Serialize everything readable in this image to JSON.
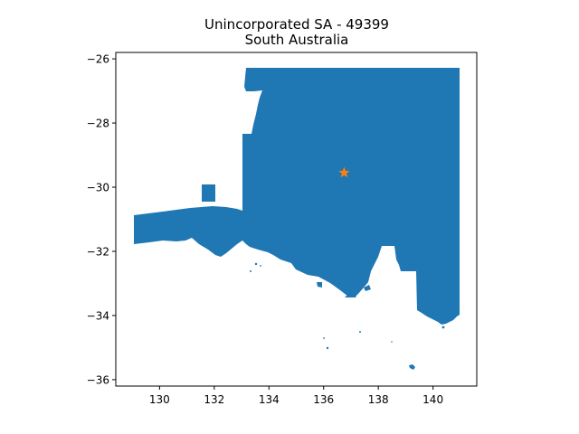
{
  "map": {
    "title": "Unincorporated SA - 49399",
    "subtitle": "South Australia",
    "region_color": "#1f77b4",
    "marker": {
      "icon": "star-icon",
      "color": "#ff7f0e",
      "lon": 136.75,
      "lat": -29.55
    },
    "x_axis": {
      "ticks": [
        130,
        132,
        134,
        136,
        138,
        140
      ],
      "range": [
        128.4,
        141.6
      ]
    },
    "y_axis": {
      "ticks": [
        -26,
        -28,
        -30,
        -32,
        -34,
        -36
      ],
      "range": [
        -36.2,
        -25.8
      ]
    },
    "grid": false
  }
}
